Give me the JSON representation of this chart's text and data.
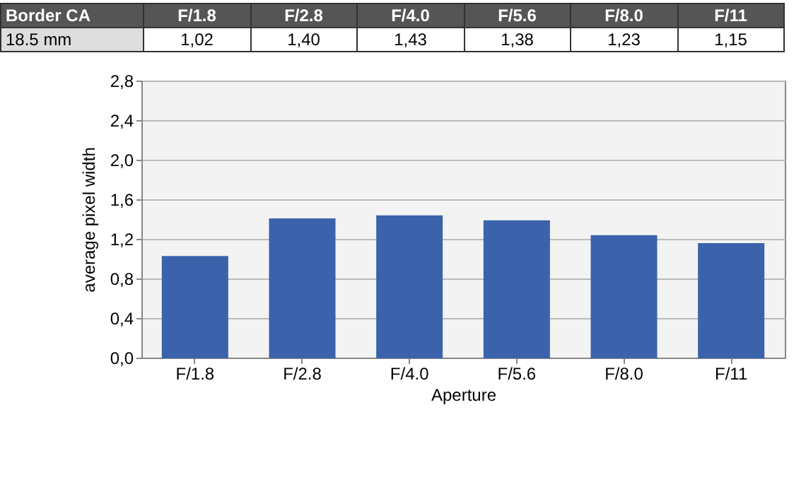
{
  "chart_data": {
    "type": "bar",
    "title": "Border CA",
    "xlabel": "Aperture",
    "ylabel": "average pixel width",
    "categories": [
      "F/1.8",
      "F/2.8",
      "F/4.0",
      "F/5.6",
      "F/8.0",
      "F/11"
    ],
    "series": [
      {
        "name": "18.5 mm",
        "color": "#3a63ab",
        "values": [
          1.02,
          1.4,
          1.43,
          1.38,
          1.23,
          1.15
        ],
        "value_labels": [
          "1,02",
          "1,40",
          "1,43",
          "1,38",
          "1,23",
          "1,15"
        ]
      }
    ],
    "ylim": [
      0,
      2.8
    ],
    "yticks": [
      {
        "value": 0,
        "label": "0,0"
      },
      {
        "value": 0.4,
        "label": "0,4"
      },
      {
        "value": 0.8,
        "label": "0,8"
      },
      {
        "value": 1.2,
        "label": "1,2"
      },
      {
        "value": 1.6,
        "label": "1,6"
      },
      {
        "value": 2.0,
        "label": "2,0"
      },
      {
        "value": 2.4,
        "label": "2,4"
      },
      {
        "value": 2.8,
        "label": "2,8"
      }
    ],
    "grid": "y"
  }
}
